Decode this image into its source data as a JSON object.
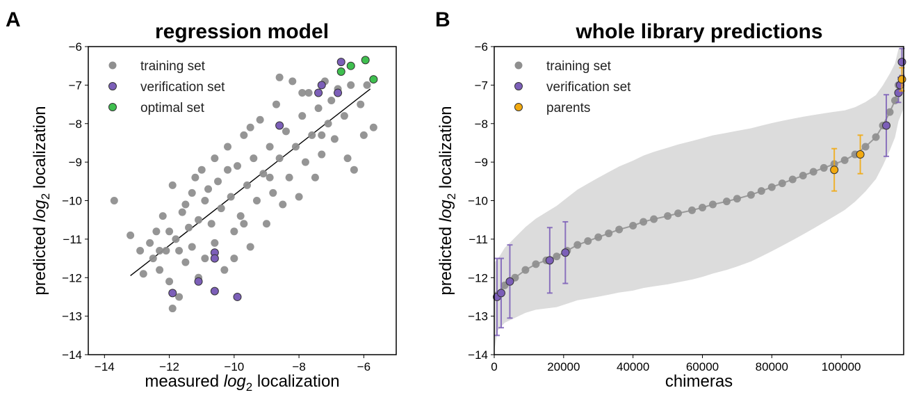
{
  "chart_data": [
    {
      "panel": "A",
      "type": "scatter",
      "title": "regression model",
      "xlabel": {
        "prefix": "measured ",
        "italic": "log",
        "sub": "2",
        "suffix": " localization"
      },
      "ylabel": {
        "prefix": "predicted ",
        "italic": "log",
        "sub": "2",
        "suffix": " localization"
      },
      "xlim": [
        -14.5,
        -5
      ],
      "ylim": [
        -14,
        -6
      ],
      "xticks": [
        -14,
        -12,
        -10,
        -8,
        -6
      ],
      "yticks": [
        -14,
        -13,
        -12,
        -11,
        -10,
        -9,
        -8,
        -7,
        -6
      ],
      "grid": false,
      "legend": "top-left",
      "fit_line": {
        "x": [
          -13.2,
          -5.8
        ],
        "y": [
          -11.95,
          -7.1
        ]
      },
      "series": [
        {
          "name": "training set",
          "color": "#8f8f8f",
          "points": [
            [
              -13.7,
              -10.0
            ],
            [
              -13.2,
              -10.9
            ],
            [
              -12.9,
              -11.3
            ],
            [
              -12.8,
              -11.9
            ],
            [
              -12.6,
              -11.1
            ],
            [
              -12.5,
              -11.5
            ],
            [
              -12.4,
              -10.8
            ],
            [
              -12.3,
              -11.8
            ],
            [
              -12.2,
              -10.4
            ],
            [
              -12.1,
              -11.3
            ],
            [
              -12.0,
              -10.8
            ],
            [
              -12.0,
              -12.1
            ],
            [
              -11.9,
              -12.8
            ],
            [
              -11.9,
              -9.6
            ],
            [
              -11.8,
              -11.0
            ],
            [
              -11.7,
              -12.5
            ],
            [
              -11.6,
              -10.3
            ],
            [
              -11.5,
              -11.6
            ],
            [
              -11.5,
              -10.1
            ],
            [
              -11.4,
              -10.7
            ],
            [
              -11.3,
              -11.2
            ],
            [
              -11.2,
              -9.4
            ],
            [
              -11.1,
              -10.5
            ],
            [
              -11.1,
              -12.0
            ],
            [
              -11.0,
              -9.2
            ],
            [
              -10.9,
              -10.0
            ],
            [
              -10.9,
              -11.5
            ],
            [
              -10.8,
              -9.7
            ],
            [
              -10.7,
              -10.6
            ],
            [
              -10.6,
              -8.9
            ],
            [
              -10.6,
              -11.1
            ],
            [
              -10.5,
              -9.5
            ],
            [
              -10.4,
              -10.2
            ],
            [
              -10.3,
              -11.8
            ],
            [
              -10.2,
              -8.6
            ],
            [
              -10.1,
              -9.9
            ],
            [
              -10.0,
              -10.8
            ],
            [
              -9.9,
              -9.1
            ],
            [
              -9.8,
              -10.4
            ],
            [
              -9.7,
              -8.3
            ],
            [
              -9.6,
              -9.6
            ],
            [
              -9.5,
              -11.2
            ],
            [
              -9.4,
              -8.9
            ],
            [
              -9.3,
              -10.0
            ],
            [
              -9.2,
              -7.9
            ],
            [
              -9.1,
              -9.3
            ],
            [
              -9.0,
              -10.6
            ],
            [
              -8.9,
              -8.6
            ],
            [
              -8.8,
              -9.8
            ],
            [
              -8.7,
              -7.5
            ],
            [
              -8.6,
              -8.9
            ],
            [
              -8.5,
              -10.1
            ],
            [
              -8.4,
              -8.2
            ],
            [
              -8.3,
              -9.4
            ],
            [
              -8.2,
              -6.9
            ],
            [
              -8.1,
              -8.6
            ],
            [
              -8.0,
              -9.9
            ],
            [
              -7.9,
              -7.8
            ],
            [
              -7.8,
              -9.0
            ],
            [
              -7.7,
              -7.2
            ],
            [
              -7.6,
              -8.3
            ],
            [
              -7.5,
              -9.4
            ],
            [
              -7.4,
              -7.6
            ],
            [
              -7.3,
              -8.8
            ],
            [
              -7.2,
              -6.9
            ],
            [
              -7.1,
              -8.0
            ],
            [
              -7.0,
              -7.4
            ],
            [
              -6.9,
              -8.4
            ],
            [
              -6.8,
              -7.1
            ],
            [
              -6.6,
              -7.8
            ],
            [
              -6.5,
              -8.9
            ],
            [
              -6.4,
              -7.0
            ],
            [
              -6.3,
              -9.2
            ],
            [
              -6.1,
              -7.5
            ],
            [
              -6.0,
              -8.3
            ],
            [
              -5.9,
              -7.0
            ],
            [
              -5.7,
              -8.1
            ],
            [
              -8.6,
              -6.8
            ],
            [
              -7.9,
              -7.2
            ],
            [
              -9.5,
              -8.1
            ],
            [
              -10.2,
              -9.2
            ],
            [
              -11.3,
              -9.8
            ],
            [
              -12.3,
              -11.3
            ],
            [
              -11.7,
              -11.3
            ],
            [
              -10.0,
              -11.5
            ],
            [
              -9.7,
              -10.6
            ],
            [
              -8.9,
              -9.4
            ],
            [
              -7.3,
              -8.3
            ]
          ]
        },
        {
          "name": "verification set",
          "color": "#7c5fb8",
          "points": [
            [
              -6.7,
              -6.4
            ],
            [
              -7.3,
              -7.0
            ],
            [
              -7.4,
              -7.2
            ],
            [
              -6.8,
              -7.2
            ],
            [
              -8.6,
              -8.05
            ],
            [
              -10.6,
              -11.35
            ],
            [
              -10.6,
              -11.5
            ],
            [
              -11.1,
              -12.1
            ],
            [
              -11.9,
              -12.4
            ],
            [
              -10.6,
              -12.35
            ],
            [
              -9.9,
              -12.5
            ]
          ]
        },
        {
          "name": "optimal set",
          "color": "#3fbf4f",
          "points": [
            [
              -6.4,
              -6.5
            ],
            [
              -6.7,
              -6.65
            ],
            [
              -5.95,
              -6.35
            ],
            [
              -5.7,
              -6.85
            ]
          ]
        }
      ]
    },
    {
      "panel": "B",
      "type": "scatter",
      "title": "whole library predictions",
      "xlabel": {
        "prefix": "chimeras",
        "italic": "",
        "sub": "",
        "suffix": ""
      },
      "ylabel": {
        "prefix": "predicted ",
        "italic": "log",
        "sub": "2",
        "suffix": " localization"
      },
      "xlim": [
        0,
        118000
      ],
      "ylim": [
        -14,
        -6
      ],
      "xticks": [
        0,
        20000,
        40000,
        60000,
        80000,
        100000
      ],
      "yticks": [
        -14,
        -13,
        -12,
        -11,
        -10,
        -9,
        -8,
        -7,
        -6
      ],
      "grid": false,
      "legend": "top-left",
      "band_color": "#dcdcdc",
      "series": [
        {
          "name": "training set",
          "color": "#8f8f8f",
          "points": [
            [
              1000,
              -12.45
            ],
            [
              3000,
              -12.2
            ],
            [
              6000,
              -12.0
            ],
            [
              9000,
              -11.8
            ],
            [
              12000,
              -11.65
            ],
            [
              15000,
              -11.55
            ],
            [
              18000,
              -11.45
            ],
            [
              21000,
              -11.3
            ],
            [
              24000,
              -11.15
            ],
            [
              27000,
              -11.05
            ],
            [
              30000,
              -10.95
            ],
            [
              33000,
              -10.85
            ],
            [
              36000,
              -10.75
            ],
            [
              40000,
              -10.65
            ],
            [
              43000,
              -10.55
            ],
            [
              46000,
              -10.48
            ],
            [
              50000,
              -10.4
            ],
            [
              53000,
              -10.33
            ],
            [
              57000,
              -10.25
            ],
            [
              60000,
              -10.18
            ],
            [
              63000,
              -10.1
            ],
            [
              67000,
              -10.02
            ],
            [
              70000,
              -9.95
            ],
            [
              74000,
              -9.85
            ],
            [
              77000,
              -9.75
            ],
            [
              80000,
              -9.65
            ],
            [
              83000,
              -9.55
            ],
            [
              86000,
              -9.45
            ],
            [
              89000,
              -9.35
            ],
            [
              92000,
              -9.25
            ],
            [
              95000,
              -9.15
            ],
            [
              98000,
              -9.05
            ],
            [
              101000,
              -8.95
            ],
            [
              104000,
              -8.8
            ],
            [
              107000,
              -8.6
            ],
            [
              110000,
              -8.35
            ],
            [
              112000,
              -8.05
            ],
            [
              114000,
              -7.7
            ],
            [
              115500,
              -7.4
            ],
            [
              116500,
              -7.0
            ]
          ]
        },
        {
          "name": "verification set",
          "color": "#7c5fb8",
          "points": [
            [
              800,
              -12.5
            ],
            [
              2000,
              -12.4
            ],
            [
              4500,
              -12.1
            ],
            [
              16000,
              -11.55
            ],
            [
              20500,
              -11.35
            ],
            [
              113000,
              -8.05
            ],
            [
              116500,
              -7.2
            ],
            [
              117000,
              -7.0
            ],
            [
              117500,
              -6.4
            ]
          ],
          "errors": [
            1.0,
            0.9,
            0.95,
            0.85,
            0.8,
            0.8,
            0.25,
            0.2,
            0.35
          ]
        },
        {
          "name": "parents",
          "color": "#f2a90f",
          "points": [
            [
              98000,
              -9.2
            ],
            [
              105500,
              -8.8
            ],
            [
              117500,
              -6.85
            ]
          ],
          "errors": [
            0.55,
            0.5,
            0.3
          ]
        }
      ]
    }
  ]
}
